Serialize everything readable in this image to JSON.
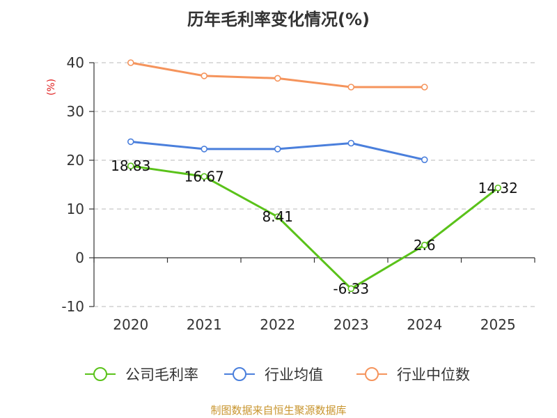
{
  "chart_data": {
    "type": "line",
    "title": "历年毛利率变化情况(%)",
    "ylabel": "(%)",
    "xlabel": "",
    "categories": [
      "2020",
      "2021",
      "2022",
      "2023",
      "2024",
      "2025"
    ],
    "ylim": [
      -10,
      40
    ],
    "yticks": [
      -10,
      0,
      10,
      20,
      30,
      40
    ],
    "grid": true,
    "legend_position": "bottom",
    "series": [
      {
        "name": "公司毛利率",
        "color": "#5ac21a",
        "values": [
          18.83,
          16.67,
          8.41,
          -6.33,
          2.6,
          14.32
        ],
        "labels": [
          "18.83",
          "16.67",
          "8.41",
          "-6.33",
          "2.6",
          "14.32"
        ]
      },
      {
        "name": "行业均值",
        "color": "#4a7fdc",
        "values": [
          23.8,
          22.3,
          22.3,
          23.5,
          20.1,
          null
        ]
      },
      {
        "name": "行业中位数",
        "color": "#f5945c",
        "values": [
          40.0,
          37.3,
          36.8,
          35.0,
          35.0,
          null
        ]
      }
    ]
  },
  "footer": "制图数据来自恒生聚源数据库"
}
